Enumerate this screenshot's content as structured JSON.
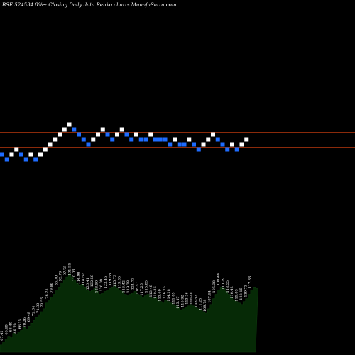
{
  "header": {
    "title": "BSE 524534  8%~  Closing Daily data  Renko  charts MunafaSutra.com"
  },
  "chart_data": [
    {
      "type": "renko",
      "series": [
        {
          "name": "",
          "values": [
            {
              "level": 0,
              "dir": "down"
            },
            {
              "level": -1,
              "dir": "down"
            },
            {
              "level": 0,
              "dir": "up"
            },
            {
              "level": 1,
              "dir": "up"
            },
            {
              "level": 0,
              "dir": "down"
            },
            {
              "level": -1,
              "dir": "down"
            },
            {
              "level": 0,
              "dir": "up"
            },
            {
              "level": -1,
              "dir": "down"
            },
            {
              "level": 0,
              "dir": "up"
            },
            {
              "level": 1,
              "dir": "up"
            },
            {
              "level": 2,
              "dir": "up"
            },
            {
              "level": 3,
              "dir": "up"
            },
            {
              "level": 4,
              "dir": "up"
            },
            {
              "level": 5,
              "dir": "up"
            },
            {
              "level": 6,
              "dir": "up"
            },
            {
              "level": 5,
              "dir": "down"
            },
            {
              "level": 4,
              "dir": "down"
            },
            {
              "level": 3,
              "dir": "down"
            },
            {
              "level": 2,
              "dir": "down"
            },
            {
              "level": 3,
              "dir": "up"
            },
            {
              "level": 4,
              "dir": "up"
            },
            {
              "level": 5,
              "dir": "up"
            },
            {
              "level": 4,
              "dir": "down"
            },
            {
              "level": 3,
              "dir": "down"
            },
            {
              "level": 4,
              "dir": "up"
            },
            {
              "level": 5,
              "dir": "up"
            },
            {
              "level": 4,
              "dir": "down"
            },
            {
              "level": 3,
              "dir": "down"
            },
            {
              "level": 4,
              "dir": "up"
            },
            {
              "level": 3,
              "dir": "down"
            },
            {
              "level": 3,
              "dir": "down"
            },
            {
              "level": 4,
              "dir": "up"
            },
            {
              "level": 3,
              "dir": "down"
            },
            {
              "level": 3,
              "dir": "down"
            },
            {
              "level": 3,
              "dir": "down"
            },
            {
              "level": 2,
              "dir": "down"
            },
            {
              "level": 3,
              "dir": "up"
            },
            {
              "level": 2,
              "dir": "down"
            },
            {
              "level": 2,
              "dir": "down"
            },
            {
              "level": 3,
              "dir": "up"
            },
            {
              "level": 2,
              "dir": "down"
            },
            {
              "level": 1,
              "dir": "down"
            },
            {
              "level": 2,
              "dir": "up"
            },
            {
              "level": 3,
              "dir": "up"
            },
            {
              "level": 4,
              "dir": "up"
            },
            {
              "level": 3,
              "dir": "down"
            },
            {
              "level": 2,
              "dir": "down"
            },
            {
              "level": 1,
              "dir": "down"
            },
            {
              "level": 2,
              "dir": "up"
            },
            {
              "level": 1,
              "dir": "down"
            },
            {
              "level": 2,
              "dir": "up"
            },
            {
              "level": 3,
              "dir": "up"
            }
          ]
        }
      ],
      "reference_lines": [
        4.5,
        1.5
      ],
      "colors": {
        "up": "#ffffff",
        "down": "#1e6cff",
        "reference": "#8b2a0a",
        "background": "#000000"
      }
    },
    {
      "type": "area",
      "series": [
        {
          "name": "",
          "values": [
            10,
            14,
            18,
            22,
            20,
            26,
            24,
            28,
            30,
            34,
            32,
            36,
            40,
            44,
            48,
            52,
            56,
            60,
            68,
            72,
            76,
            80,
            86,
            90,
            96,
            100,
            104,
            108,
            104,
            100,
            96,
            92,
            94,
            90,
            86,
            84,
            86,
            88,
            84,
            80,
            82,
            84,
            86,
            88,
            90,
            92,
            88,
            86,
            84,
            80,
            78,
            80,
            82,
            84,
            80,
            78,
            76,
            78,
            80,
            76,
            74,
            76,
            72,
            70,
            68,
            72,
            70,
            68,
            66,
            64,
            62,
            58,
            60,
            62,
            64,
            66,
            64,
            62,
            60,
            58,
            56,
            54,
            60,
            66,
            74,
            80,
            86,
            90,
            88,
            84,
            80,
            76,
            72,
            70,
            68,
            66,
            70,
            74,
            80,
            86,
            90,
            88
          ]
        }
      ],
      "data_labels": [
        "67.42",
        "65.68",
        "63.40",
        "68.79",
        "66.15",
        "70.26",
        "69.48",
        "72.34",
        "74.80",
        "73.55",
        "76.25",
        "79.86",
        "85.70",
        "92.79",
        "97.75",
        "101.55",
        "110.03",
        "114.90",
        "118.52",
        "120.41",
        "122.58",
        "128.50",
        "126.09",
        "123.46",
        "119.58",
        "115.73",
        "113.35",
        "116.42",
        "119.28",
        "121.73",
        "118.57",
        "117.25",
        "115.85",
        "112.48",
        "110.36",
        "113.69",
        "116.75",
        "114.28",
        "111.85",
        "113.47",
        "115.92",
        "113.36",
        "110.48",
        "108.57",
        "111.25",
        "109.78",
        "107.64",
        "105.38",
        "108.44",
        "110.29",
        "113.55",
        "116.42",
        "119.83",
        "122.15",
        "119.73",
        "117.88"
      ],
      "colors": {
        "fill": "#062a06",
        "stroke": "#0f3d0f"
      }
    }
  ]
}
